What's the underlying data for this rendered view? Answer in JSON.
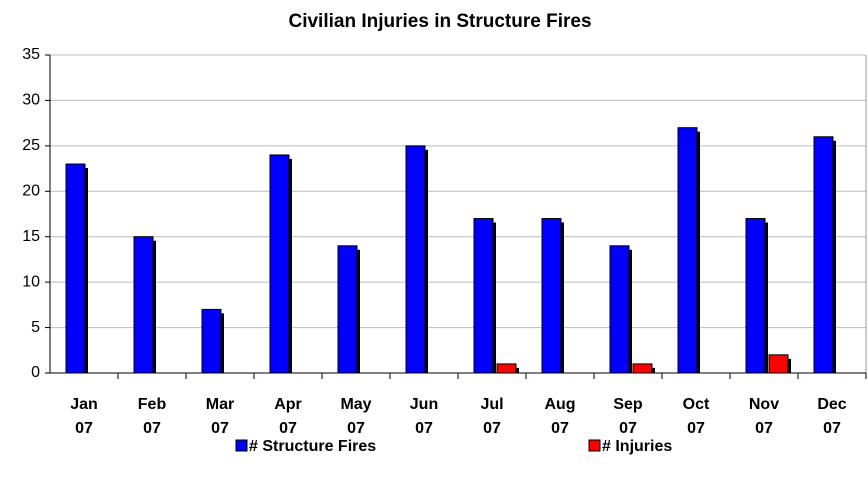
{
  "chart_data": {
    "type": "bar",
    "title": "Civilian Injuries in Structure Fires",
    "categories": [
      "Jan 07",
      "Feb 07",
      "Mar 07",
      "Apr 07",
      "May 07",
      "Jun 07",
      "Jul 07",
      "Aug 07",
      "Sep 07",
      "Oct 07",
      "Nov 07",
      "Dec 07"
    ],
    "series": [
      {
        "name": "# Structure Fires",
        "color": "#0000ff",
        "values": [
          23,
          15,
          7,
          24,
          14,
          25,
          17,
          17,
          14,
          27,
          17,
          26
        ]
      },
      {
        "name": "# Injuries",
        "color": "#ff0000",
        "values": [
          0,
          0,
          0,
          0,
          0,
          0,
          1,
          0,
          1,
          0,
          2,
          0
        ]
      }
    ],
    "ylim": [
      0,
      35
    ],
    "yticks": [
      0,
      5,
      10,
      15,
      20,
      25,
      30,
      35
    ],
    "grid": true,
    "legend": "bottom"
  }
}
